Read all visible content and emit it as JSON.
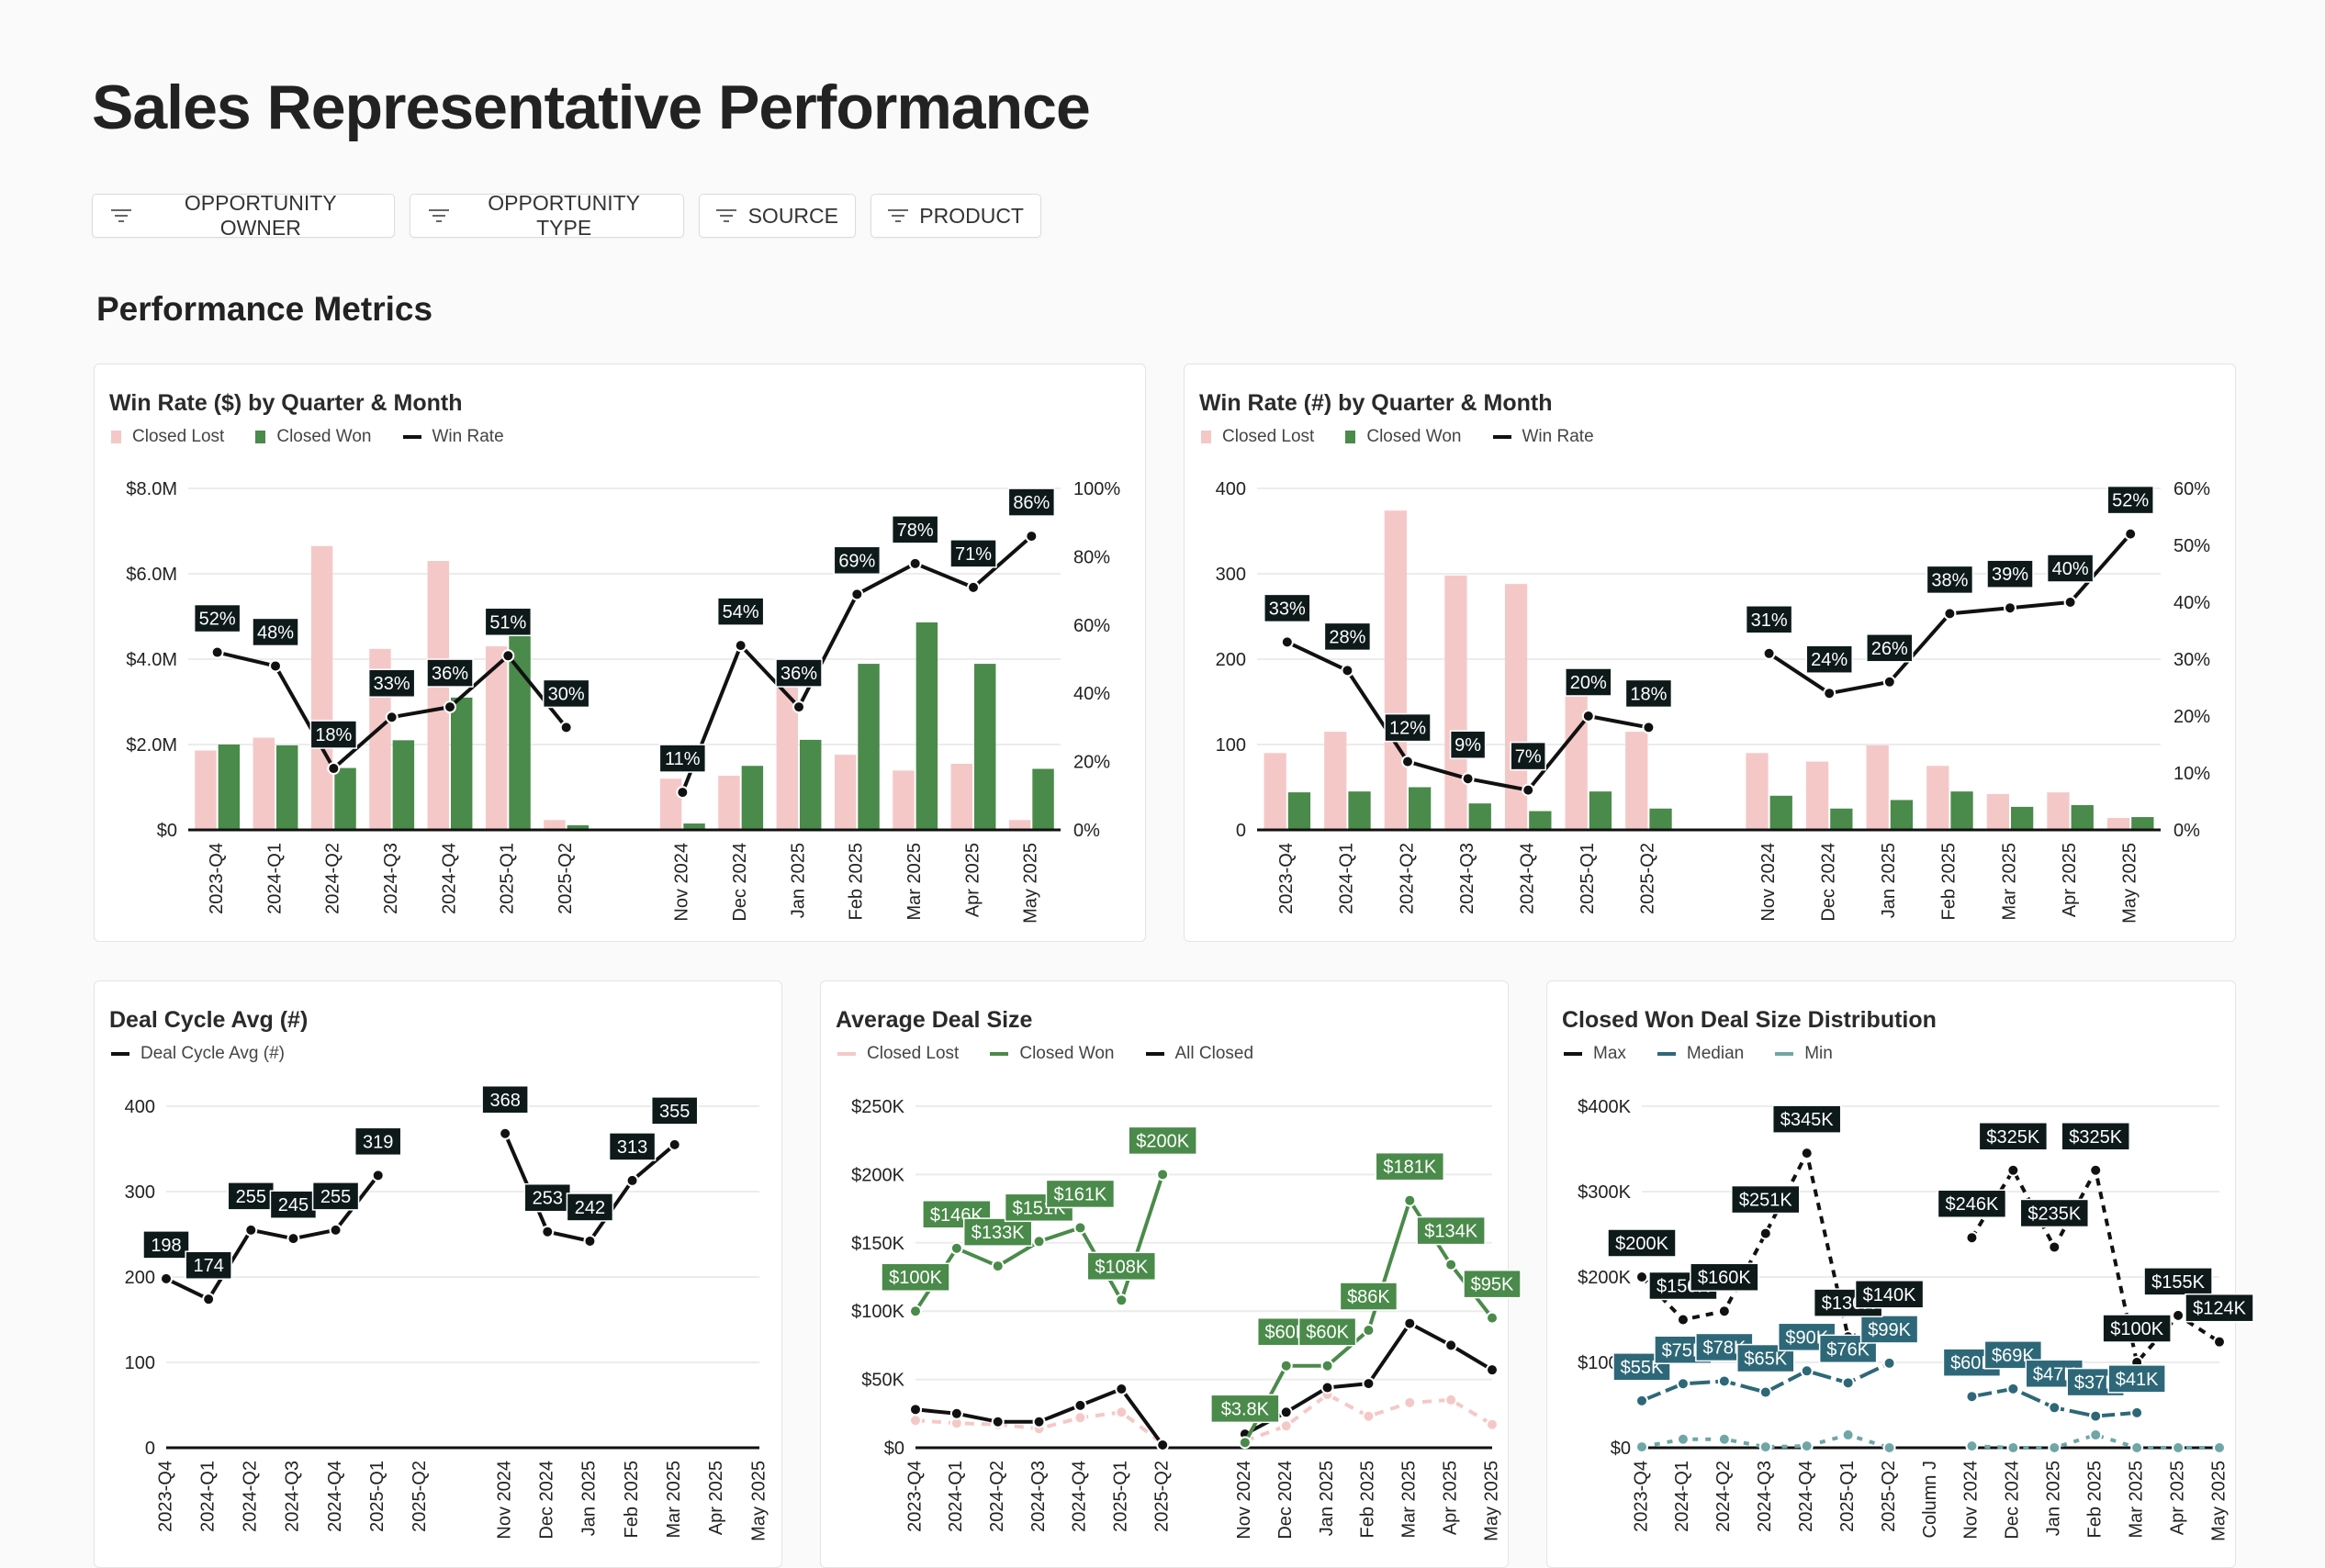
{
  "page": {
    "title": "Sales Representative Performance",
    "section_title": "Performance Metrics"
  },
  "filters": [
    {
      "label": "OPPORTUNITY OWNER",
      "icon": "filter-icon"
    },
    {
      "label": "OPPORTUNITY TYPE",
      "icon": "filter-icon"
    },
    {
      "label": "SOURCE",
      "icon": "filter-icon"
    },
    {
      "label": "PRODUCT",
      "icon": "filter-icon"
    }
  ],
  "colors": {
    "closed_lost": "#f5c8c8",
    "closed_won": "#4a8a4a",
    "win_rate": "#111111",
    "median": "#2e6878",
    "min": "#6fa6a6",
    "label_bg": "#0e1a1a"
  },
  "chart_data": [
    {
      "type": "bar",
      "title": "Win Rate ($) by Quarter & Month",
      "legend": [
        {
          "label": "Closed Lost",
          "shape": "square",
          "color": "#f5c8c8"
        },
        {
          "label": "Closed Won",
          "shape": "square",
          "color": "#4a8a4a"
        },
        {
          "label": "Win Rate",
          "shape": "line",
          "color": "#111111"
        }
      ],
      "categories": [
        "2023-Q4",
        "2024-Q1",
        "2024-Q2",
        "2024-Q3",
        "2024-Q4",
        "2025-Q1",
        "2025-Q2",
        "",
        "Nov 2024",
        "Dec 2024",
        "Jan 2025",
        "Feb 2025",
        "Mar 2025",
        "Apr 2025",
        "May 2025"
      ],
      "y_left": {
        "range": [
          0,
          8
        ],
        "unit": "$M",
        "ticks": [
          {
            "value": 0,
            "label": "$0"
          },
          {
            "value": 2,
            "label": "$2.0M"
          },
          {
            "value": 4,
            "label": "$4.0M"
          },
          {
            "value": 6,
            "label": "$6.0M"
          },
          {
            "value": 8,
            "label": "$8.0M"
          }
        ]
      },
      "y_right": {
        "range": [
          0,
          100
        ],
        "ticks": [
          {
            "value": 0,
            "label": "0%"
          },
          {
            "value": 20,
            "label": "20%"
          },
          {
            "value": 40,
            "label": "40%"
          },
          {
            "value": 60,
            "label": "60%"
          },
          {
            "value": 80,
            "label": "80%"
          },
          {
            "value": 100,
            "label": "100%"
          }
        ]
      },
      "grid": true,
      "legend_position": "top-left",
      "series": [
        {
          "name": "Closed Lost",
          "type": "bar",
          "axis": "left",
          "color": "#f5c8c8",
          "values": [
            1.86,
            2.16,
            6.65,
            4.24,
            6.3,
            4.3,
            0.23,
            null,
            1.2,
            1.27,
            3.82,
            1.76,
            1.39,
            1.55,
            0.23
          ]
        },
        {
          "name": "Closed Won",
          "type": "bar",
          "axis": "left",
          "color": "#4a8a4a",
          "values": [
            2.0,
            1.98,
            1.45,
            2.1,
            3.1,
            4.86,
            0.11,
            null,
            0.15,
            1.5,
            2.11,
            3.89,
            4.86,
            3.89,
            1.43
          ]
        },
        {
          "name": "Win Rate",
          "type": "line",
          "axis": "right",
          "color": "#111111",
          "dash": "",
          "values": [
            52,
            48,
            18,
            33,
            36,
            51,
            30,
            null,
            11,
            54,
            36,
            69,
            78,
            71,
            86
          ],
          "labels": [
            "52%",
            "48%",
            "18%",
            "33%",
            "36%",
            "51%",
            "30%",
            "",
            "11%",
            "54%",
            "36%",
            "69%",
            "78%",
            "71%",
            "86%"
          ]
        }
      ]
    },
    {
      "type": "bar",
      "title": "Win Rate (#) by Quarter & Month",
      "legend": [
        {
          "label": "Closed Lost",
          "shape": "square",
          "color": "#f5c8c8"
        },
        {
          "label": "Closed Won",
          "shape": "square",
          "color": "#4a8a4a"
        },
        {
          "label": "Win Rate",
          "shape": "line",
          "color": "#111111"
        }
      ],
      "categories": [
        "2023-Q4",
        "2024-Q1",
        "2024-Q2",
        "2024-Q3",
        "2024-Q4",
        "2025-Q1",
        "2025-Q2",
        "",
        "Nov 2024",
        "Dec 2024",
        "Jan 2025",
        "Feb 2025",
        "Mar 2025",
        "Apr 2025",
        "May 2025"
      ],
      "y_left": {
        "range": [
          0,
          400
        ],
        "ticks": [
          {
            "value": 0,
            "label": "0"
          },
          {
            "value": 100,
            "label": "100"
          },
          {
            "value": 200,
            "label": "200"
          },
          {
            "value": 300,
            "label": "300"
          },
          {
            "value": 400,
            "label": "400"
          }
        ]
      },
      "y_right": {
        "range": [
          0,
          60
        ],
        "ticks": [
          {
            "value": 0,
            "label": "0%"
          },
          {
            "value": 10,
            "label": "10%"
          },
          {
            "value": 20,
            "label": "20%"
          },
          {
            "value": 30,
            "label": "30%"
          },
          {
            "value": 40,
            "label": "40%"
          },
          {
            "value": 50,
            "label": "50%"
          },
          {
            "value": 60,
            "label": "60%"
          }
        ]
      },
      "grid": true,
      "legend_position": "top-left",
      "series": [
        {
          "name": "Closed Lost",
          "type": "bar",
          "axis": "left",
          "color": "#f5c8c8",
          "values": [
            90,
            115,
            374,
            298,
            288,
            179,
            115,
            null,
            90,
            80,
            99,
            75,
            42,
            44,
            14
          ]
        },
        {
          "name": "Closed Won",
          "type": "bar",
          "axis": "left",
          "color": "#4a8a4a",
          "values": [
            44,
            45,
            50,
            31,
            22,
            45,
            25,
            null,
            40,
            25,
            35,
            45,
            27,
            29,
            15
          ]
        },
        {
          "name": "Win Rate",
          "type": "line",
          "axis": "right",
          "color": "#111111",
          "dash": "",
          "values": [
            33,
            28,
            12,
            9,
            7,
            20,
            18,
            null,
            31,
            24,
            26,
            38,
            39,
            40,
            52
          ],
          "labels": [
            "33%",
            "28%",
            "12%",
            "9%",
            "7%",
            "20%",
            "18%",
            "",
            "31%",
            "24%",
            "26%",
            "38%",
            "39%",
            "40%",
            "52%"
          ]
        }
      ]
    },
    {
      "type": "line",
      "title": "Deal Cycle Avg (#)",
      "legend": [
        {
          "label": "Deal Cycle Avg (#)",
          "shape": "line",
          "color": "#111111"
        }
      ],
      "categories": [
        "2023-Q4",
        "2024-Q1",
        "2024-Q2",
        "2024-Q3",
        "2024-Q4",
        "2025-Q1",
        "2025-Q2",
        "",
        "Nov 2024",
        "Dec 2024",
        "Jan 2025",
        "Feb 2025",
        "Mar 2025",
        "Apr 2025",
        "May 2025"
      ],
      "y_left": {
        "range": [
          0,
          400
        ],
        "ticks": [
          {
            "value": 0,
            "label": "0"
          },
          {
            "value": 100,
            "label": "100"
          },
          {
            "value": 200,
            "label": "200"
          },
          {
            "value": 300,
            "label": "300"
          },
          {
            "value": 400,
            "label": "400"
          }
        ]
      },
      "grid": true,
      "legend_position": "top-left",
      "series": [
        {
          "name": "Deal Cycle Avg (#)",
          "type": "line",
          "axis": "left",
          "color": "#111111",
          "dash": "",
          "values": [
            198,
            174,
            255,
            245,
            255,
            319,
            null,
            null,
            368,
            253,
            242,
            313,
            355,
            null,
            null
          ],
          "labels": [
            "198",
            "174",
            "255",
            "245",
            "255",
            "319",
            "",
            "",
            "368",
            "253",
            "242",
            "313",
            "355",
            "",
            ""
          ]
        }
      ]
    },
    {
      "type": "line",
      "title": "Average Deal Size",
      "legend": [
        {
          "label": "Closed Lost",
          "shape": "line",
          "color": "#f5c8c8"
        },
        {
          "label": "Closed Won",
          "shape": "line",
          "color": "#4a8a4a"
        },
        {
          "label": "All Closed",
          "shape": "line",
          "color": "#111111"
        }
      ],
      "categories": [
        "2023-Q4",
        "2024-Q1",
        "2024-Q2",
        "2024-Q3",
        "2024-Q4",
        "2025-Q1",
        "2025-Q2",
        "",
        "Nov 2024",
        "Dec 2024",
        "Jan 2025",
        "Feb 2025",
        "Mar 2025",
        "Apr 2025",
        "May 2025"
      ],
      "y_left": {
        "range": [
          0,
          250
        ],
        "unit": "$K",
        "ticks": [
          {
            "value": 0,
            "label": "$0"
          },
          {
            "value": 50,
            "label": "$50K"
          },
          {
            "value": 100,
            "label": "$100K"
          },
          {
            "value": 150,
            "label": "$150K"
          },
          {
            "value": 200,
            "label": "$200K"
          },
          {
            "value": 250,
            "label": "$250K"
          }
        ]
      },
      "grid": true,
      "legend_position": "top-left",
      "series": [
        {
          "name": "Closed Lost",
          "type": "line",
          "axis": "left",
          "color": "#f5c8c8",
          "dash": "10 8",
          "values": [
            20,
            18,
            17,
            14,
            22,
            26,
            3,
            null,
            5,
            16,
            39,
            23,
            33,
            35,
            17
          ]
        },
        {
          "name": "All Closed",
          "type": "line",
          "axis": "left",
          "color": "#111111",
          "dash": "",
          "values": [
            28,
            25,
            19,
            19,
            31,
            43,
            2,
            null,
            10,
            26,
            44,
            47,
            91,
            75,
            57
          ]
        },
        {
          "name": "Closed Won",
          "type": "line",
          "axis": "left",
          "color": "#4a8a4a",
          "dash": "",
          "label_color": "#4a8a4a",
          "values": [
            100,
            146,
            133,
            151,
            161,
            108,
            200,
            null,
            3.8,
            60,
            60,
            86,
            181,
            134,
            95
          ],
          "labels": [
            "$100K",
            "$146K",
            "$133K",
            "$151K",
            "$161K",
            "$108K",
            "$200K",
            "",
            "$3.8K",
            "$60K",
            "$60K",
            "$86K",
            "$181K",
            "$134K",
            "$95K"
          ]
        }
      ]
    },
    {
      "type": "line",
      "title": "Closed Won Deal Size Distribution",
      "legend": [
        {
          "label": "Max",
          "shape": "line",
          "color": "#111111"
        },
        {
          "label": "Median",
          "shape": "line",
          "color": "#2e6878"
        },
        {
          "label": "Min",
          "shape": "line",
          "color": "#6fa6a6"
        }
      ],
      "categories": [
        "2023-Q4",
        "2024-Q1",
        "2024-Q2",
        "2024-Q3",
        "2024-Q4",
        "2025-Q1",
        "2025-Q2",
        "Column J",
        "Nov 2024",
        "Dec 2024",
        "Jan 2025",
        "Feb 2025",
        "Mar 2025",
        "Apr 2025",
        "May 2025"
      ],
      "y_left": {
        "range": [
          0,
          400
        ],
        "unit": "$K",
        "ticks": [
          {
            "value": 0,
            "label": "$0"
          },
          {
            "value": 100,
            "label": "$100K"
          },
          {
            "value": 200,
            "label": "$200K"
          },
          {
            "value": 300,
            "label": "$300K"
          },
          {
            "value": 400,
            "label": "$400K"
          }
        ]
      },
      "grid": true,
      "legend_position": "top-left",
      "series": [
        {
          "name": "Min",
          "type": "line",
          "axis": "left",
          "color": "#6fa6a6",
          "dash": "6 8",
          "values": [
            1,
            10,
            10,
            1,
            2,
            15,
            0,
            null,
            2,
            0,
            0,
            15,
            0,
            0,
            0
          ]
        },
        {
          "name": "Median",
          "type": "line",
          "axis": "left",
          "color": "#2e6878",
          "dash": "22 6",
          "label_color": "#2e6878",
          "values": [
            55,
            75,
            78,
            65,
            90,
            76,
            99,
            null,
            60,
            69,
            47,
            37,
            41,
            null,
            null
          ],
          "labels": [
            "$55K",
            "$75K",
            "$78K",
            "$65K",
            "$90K",
            "$76K",
            "$99K",
            "",
            "$60K",
            "$69K",
            "$47K",
            "$37K",
            "$41K",
            "",
            ""
          ]
        },
        {
          "name": "Max",
          "type": "line",
          "axis": "left",
          "color": "#111111",
          "dash": "8 7",
          "values": [
            200,
            150,
            160,
            251,
            345,
            130,
            140,
            null,
            246,
            325,
            235,
            325,
            100,
            155,
            124
          ],
          "labels": [
            "$200K",
            "$150K",
            "$160K",
            "$251K",
            "$345K",
            "$130K",
            "$140K",
            "",
            "$246K",
            "$325K",
            "$235K",
            "$325K",
            "$100K",
            "$155K",
            "$124K"
          ]
        }
      ]
    }
  ]
}
